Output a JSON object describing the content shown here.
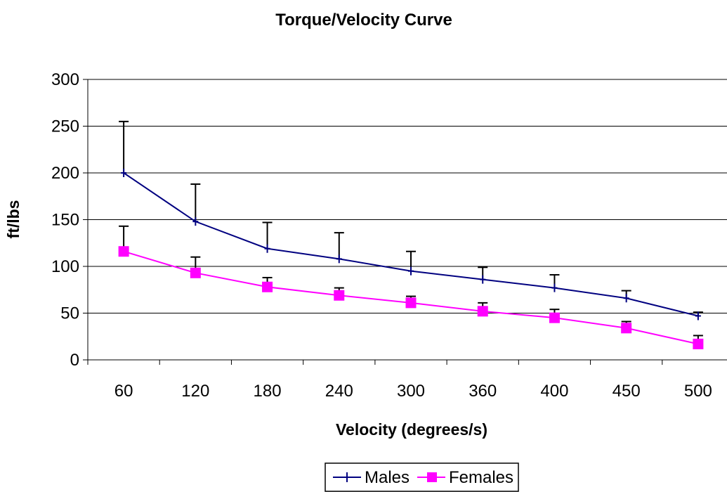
{
  "chart_data": {
    "type": "line",
    "title": "Torque/Velocity Curve",
    "xlabel": "Velocity (degrees/s)",
    "ylabel": "ft/lbs",
    "categories": [
      "60",
      "120",
      "180",
      "240",
      "300",
      "360",
      "400",
      "450",
      "500"
    ],
    "ylim": [
      0,
      300
    ],
    "yticks": [
      0,
      50,
      100,
      150,
      200,
      250,
      300
    ],
    "grid": true,
    "legend_position": "bottom",
    "series": [
      {
        "name": "Males",
        "color": "#000080",
        "marker": "plus",
        "values": [
          200,
          148,
          119,
          108,
          95,
          86,
          77,
          66,
          47
        ],
        "error_upper": [
          255,
          188,
          147,
          136,
          116,
          99,
          91,
          74,
          51
        ]
      },
      {
        "name": "Females",
        "color": "#ff00ff",
        "marker": "square",
        "values": [
          116,
          93,
          78,
          69,
          61,
          52,
          45,
          34,
          17
        ],
        "error_upper": [
          143,
          110,
          88,
          77,
          68,
          61,
          54,
          41,
          26
        ]
      }
    ]
  }
}
